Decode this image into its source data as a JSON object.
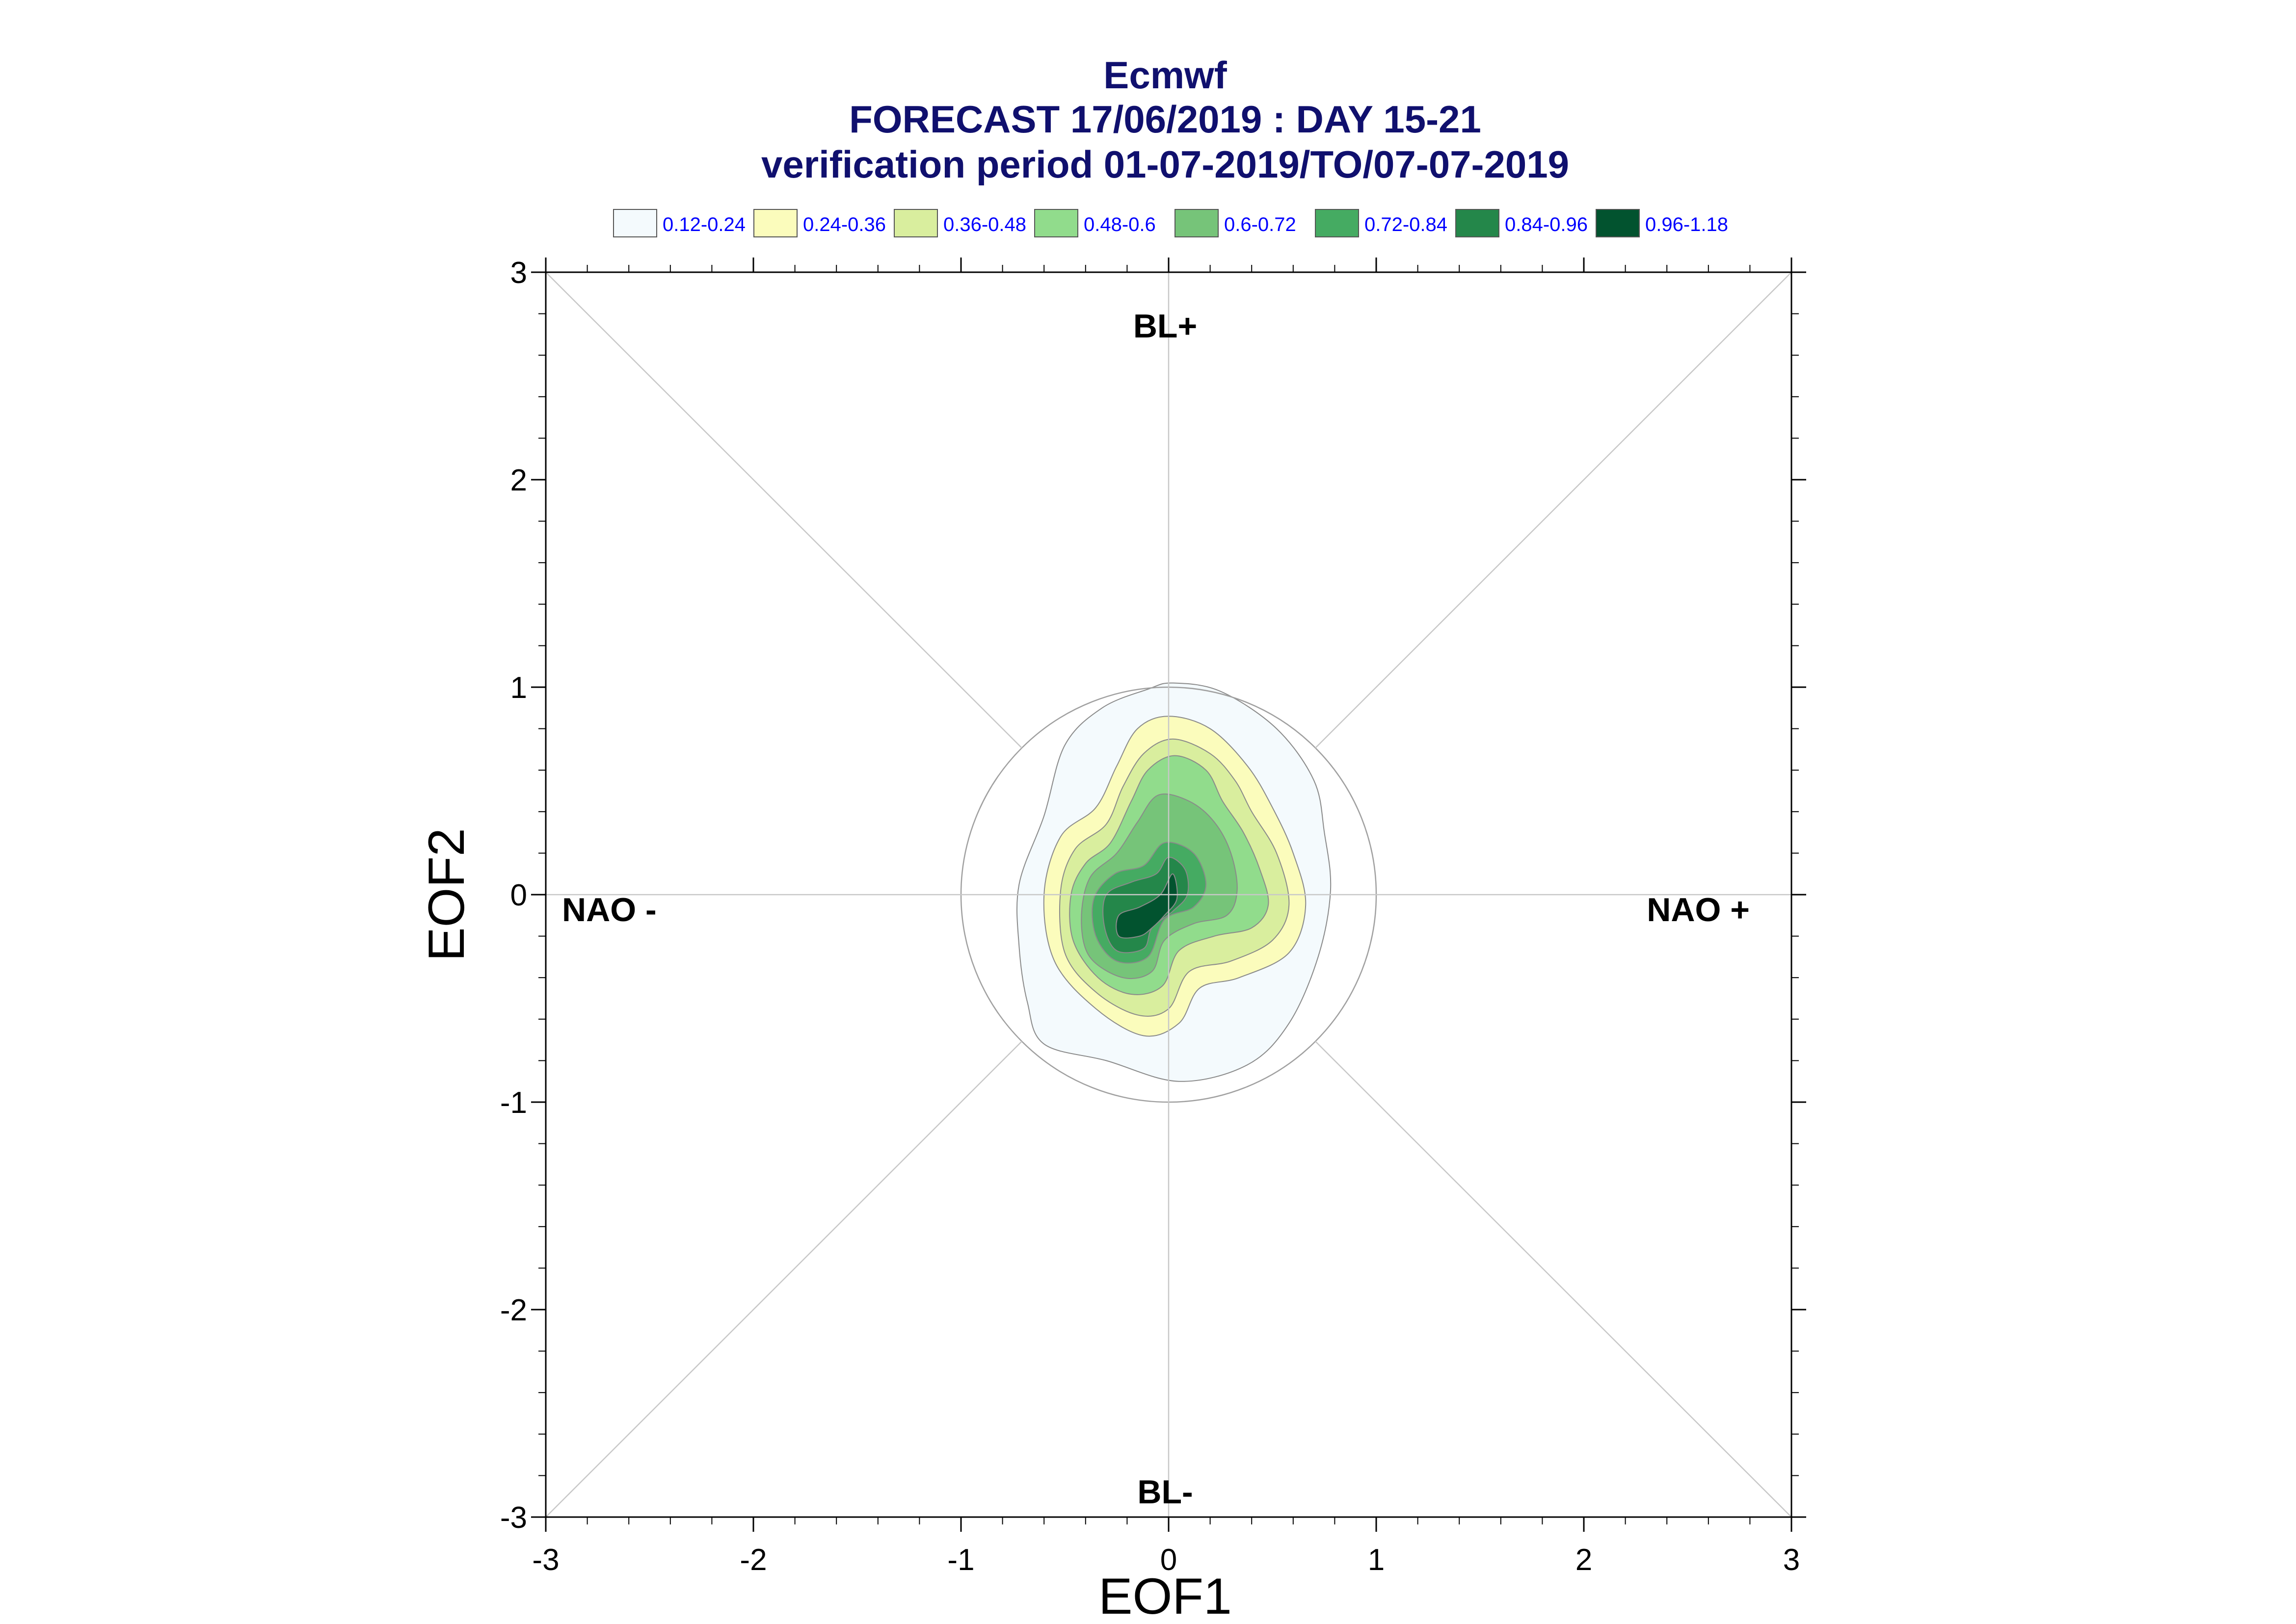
{
  "title": {
    "line1": "Ecmwf",
    "line2": "FORECAST 17/06/2019 : DAY 15-21",
    "line3": "verification period 01-07-2019/TO/07-07-2019"
  },
  "chart_data": {
    "type": "contour",
    "xlabel": "EOF1",
    "ylabel": "EOF2",
    "xlim": [
      -3,
      3
    ],
    "ylim": [
      -3,
      3
    ],
    "xticks": [
      "-3",
      "-2",
      "-1",
      "0",
      "1",
      "2",
      "3"
    ],
    "yticks": [
      "-3",
      "-2",
      "-1",
      "0",
      "1",
      "2",
      "3"
    ],
    "grid": false,
    "unit_circle_radius": 1,
    "regime_labels": {
      "top": "BL+",
      "bottom": "BL-",
      "left": "NAO -",
      "right": "NAO +"
    },
    "legend": [
      {
        "label": "0.12-0.24",
        "color": "#f4fafd"
      },
      {
        "label": "0.24-0.36",
        "color": "#fbfcbc"
      },
      {
        "label": "0.36-0.48",
        "color": "#d9ee9e"
      },
      {
        "label": "0.48-0.6",
        "color": "#91dc8c"
      },
      {
        "label": "0.6-0.72",
        "color": "#76c479"
      },
      {
        "label": "0.72-0.84",
        "color": "#45ab62"
      },
      {
        "label": "0.84-0.96",
        "color": "#24874a"
      },
      {
        "label": "0.96-1.18",
        "color": "#02532f"
      }
    ],
    "density_levels": [
      {
        "range": "0.12-0.24",
        "points": [
          [
            0.02,
            1.02
          ],
          [
            0.25,
            0.98
          ],
          [
            0.52,
            0.8
          ],
          [
            0.7,
            0.55
          ],
          [
            0.75,
            0.3
          ],
          [
            0.78,
            0.02
          ],
          [
            0.72,
            -0.3
          ],
          [
            0.58,
            -0.62
          ],
          [
            0.38,
            -0.82
          ],
          [
            0.05,
            -0.9
          ],
          [
            -0.3,
            -0.8
          ],
          [
            -0.6,
            -0.72
          ],
          [
            -0.68,
            -0.52
          ],
          [
            -0.72,
            -0.25
          ],
          [
            -0.72,
            0.05
          ],
          [
            -0.6,
            0.38
          ],
          [
            -0.5,
            0.72
          ],
          [
            -0.32,
            0.9
          ],
          [
            -0.1,
            0.99
          ]
        ]
      },
      {
        "range": "0.24-0.36",
        "points": [
          [
            0.0,
            0.86
          ],
          [
            0.2,
            0.8
          ],
          [
            0.38,
            0.62
          ],
          [
            0.5,
            0.42
          ],
          [
            0.6,
            0.2
          ],
          [
            0.66,
            -0.05
          ],
          [
            0.58,
            -0.28
          ],
          [
            0.34,
            -0.4
          ],
          [
            0.15,
            -0.45
          ],
          [
            0.05,
            -0.62
          ],
          [
            -0.12,
            -0.68
          ],
          [
            -0.35,
            -0.55
          ],
          [
            -0.55,
            -0.32
          ],
          [
            -0.6,
            0.0
          ],
          [
            -0.52,
            0.28
          ],
          [
            -0.35,
            0.42
          ],
          [
            -0.25,
            0.62
          ],
          [
            -0.15,
            0.8
          ]
        ]
      },
      {
        "range": "0.36-0.48",
        "points": [
          [
            0.02,
            0.75
          ],
          [
            0.2,
            0.68
          ],
          [
            0.32,
            0.55
          ],
          [
            0.4,
            0.4
          ],
          [
            0.52,
            0.2
          ],
          [
            0.58,
            -0.05
          ],
          [
            0.5,
            -0.22
          ],
          [
            0.3,
            -0.32
          ],
          [
            0.1,
            -0.37
          ],
          [
            0.0,
            -0.55
          ],
          [
            -0.15,
            -0.58
          ],
          [
            -0.35,
            -0.47
          ],
          [
            -0.5,
            -0.28
          ],
          [
            -0.52,
            0.02
          ],
          [
            -0.45,
            0.22
          ],
          [
            -0.3,
            0.34
          ],
          [
            -0.22,
            0.52
          ],
          [
            -0.12,
            0.68
          ]
        ]
      },
      {
        "range": "0.48-0.6",
        "points": [
          [
            0.03,
            0.67
          ],
          [
            0.18,
            0.6
          ],
          [
            0.26,
            0.45
          ],
          [
            0.36,
            0.3
          ],
          [
            0.44,
            0.12
          ],
          [
            0.48,
            -0.05
          ],
          [
            0.4,
            -0.16
          ],
          [
            0.22,
            -0.2
          ],
          [
            0.05,
            -0.27
          ],
          [
            -0.03,
            -0.44
          ],
          [
            -0.18,
            -0.48
          ],
          [
            -0.34,
            -0.4
          ],
          [
            -0.46,
            -0.22
          ],
          [
            -0.47,
            0.0
          ],
          [
            -0.4,
            0.15
          ],
          [
            -0.28,
            0.25
          ],
          [
            -0.18,
            0.45
          ],
          [
            -0.1,
            0.6
          ]
        ]
      },
      {
        "range": "0.6-0.72",
        "points": [
          [
            -0.05,
            0.48
          ],
          [
            0.1,
            0.45
          ],
          [
            0.22,
            0.35
          ],
          [
            0.3,
            0.2
          ],
          [
            0.33,
            0.02
          ],
          [
            0.28,
            -0.1
          ],
          [
            0.12,
            -0.14
          ],
          [
            -0.02,
            -0.22
          ],
          [
            -0.08,
            -0.37
          ],
          [
            -0.22,
            -0.4
          ],
          [
            -0.38,
            -0.3
          ],
          [
            -0.42,
            -0.12
          ],
          [
            -0.38,
            0.08
          ],
          [
            -0.25,
            0.2
          ],
          [
            -0.15,
            0.35
          ]
        ]
      },
      {
        "range": "0.72-0.84",
        "points": [
          [
            -0.02,
            0.25
          ],
          [
            0.12,
            0.2
          ],
          [
            0.18,
            0.05
          ],
          [
            0.12,
            -0.06
          ],
          [
            -0.02,
            -0.12
          ],
          [
            -0.1,
            -0.3
          ],
          [
            -0.25,
            -0.32
          ],
          [
            -0.35,
            -0.2
          ],
          [
            -0.36,
            -0.02
          ],
          [
            -0.26,
            0.1
          ],
          [
            -0.12,
            0.14
          ]
        ]
      },
      {
        "range": "0.84-0.96",
        "points": [
          [
            0.0,
            0.18
          ],
          [
            0.08,
            0.12
          ],
          [
            0.09,
            0.0
          ],
          [
            0.02,
            -0.08
          ],
          [
            -0.08,
            -0.16
          ],
          [
            -0.12,
            -0.26
          ],
          [
            -0.25,
            -0.27
          ],
          [
            -0.31,
            -0.15
          ],
          [
            -0.3,
            0.0
          ],
          [
            -0.18,
            0.06
          ],
          [
            -0.06,
            0.1
          ]
        ]
      },
      {
        "range": "0.96-1.18",
        "points": [
          [
            0.02,
            0.1
          ],
          [
            0.04,
            -0.02
          ],
          [
            -0.02,
            -0.1
          ],
          [
            -0.08,
            -0.16
          ],
          [
            -0.14,
            -0.2
          ],
          [
            -0.24,
            -0.2
          ],
          [
            -0.24,
            -0.1
          ],
          [
            -0.14,
            -0.06
          ],
          [
            -0.04,
            0.0
          ]
        ]
      }
    ]
  }
}
